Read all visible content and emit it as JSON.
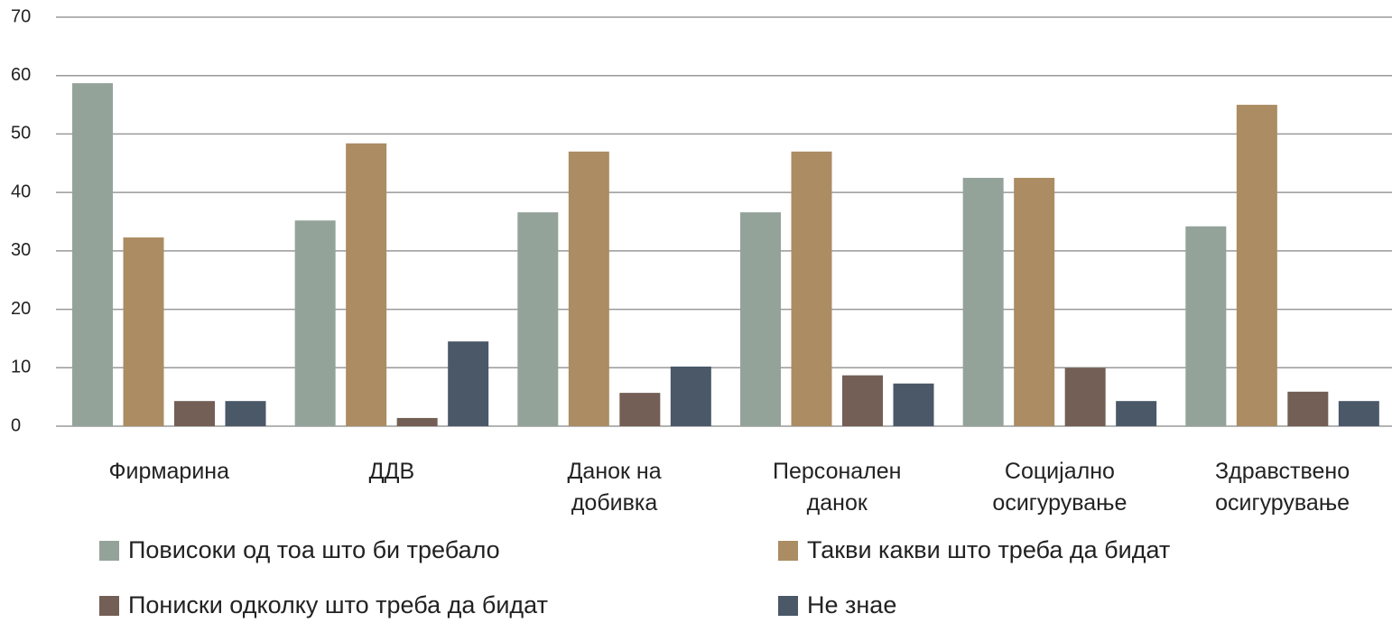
{
  "chart_data": {
    "type": "bar",
    "categories": [
      "Фирмарина",
      "ДДВ",
      "Данок на добивка",
      "Персонален данок",
      "Социјално осигурување",
      "Здравствено осигурување"
    ],
    "series": [
      {
        "name": "Повисоки од тоа што би требало",
        "color": "#94a39a",
        "values": [
          58.7,
          35.2,
          36.6,
          36.6,
          42.5,
          34.2
        ]
      },
      {
        "name": "Такви какви што треба да бидат",
        "color": "#ab8c63",
        "values": [
          32.3,
          48.4,
          47.0,
          47.0,
          42.5,
          55.0
        ]
      },
      {
        "name": "Пониски одколку што треба да бидат",
        "color": "#735f55",
        "values": [
          4.3,
          1.4,
          5.7,
          8.7,
          10.0,
          5.9
        ]
      },
      {
        "name": "Не знае",
        "color": "#4a5868",
        "values": [
          4.3,
          14.5,
          10.2,
          7.3,
          4.3,
          4.3
        ]
      }
    ],
    "ylim": [
      0,
      70
    ],
    "yticks": [
      0,
      10,
      20,
      30,
      40,
      50,
      60,
      70
    ],
    "grid": true
  }
}
